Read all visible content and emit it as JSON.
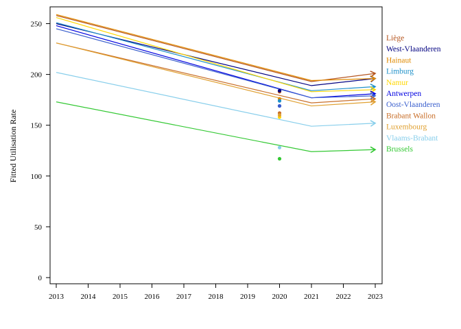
{
  "chart_data": {
    "type": "line",
    "title": "",
    "xlabel": "",
    "ylabel": "Fitted Utilisation Rate",
    "xlim": [
      2013,
      2023
    ],
    "ylim": [
      0,
      260
    ],
    "x_ticks": [
      "2013",
      "2014",
      "2015",
      "2016",
      "2017",
      "2018",
      "2019",
      "2020",
      "2021",
      "2022",
      "2023"
    ],
    "y_ticks": [
      "0",
      "50",
      "100",
      "150",
      "200",
      "250"
    ],
    "x": [
      2013,
      2021,
      2023
    ],
    "grid": false,
    "legend_position": "right",
    "series": [
      {
        "name": "Liège",
        "color": "#b5541e",
        "values": [
          258,
          193,
          201
        ],
        "observed_2020": 183
      },
      {
        "name": "West-Vlaanderen",
        "color": "#000080",
        "values": [
          250,
          189,
          196
        ],
        "observed_2020": 184
      },
      {
        "name": "Hainaut",
        "color": "#e08a00",
        "values": [
          259,
          194,
          196
        ],
        "observed_2020": 176
      },
      {
        "name": "Limburg",
        "color": "#1e90c8",
        "values": [
          251,
          184,
          188
        ],
        "observed_2020": 174
      },
      {
        "name": "Namur",
        "color": "#ffd700",
        "values": [
          256,
          183,
          185
        ],
        "observed_2020": 158
      },
      {
        "name": "Antwerpen",
        "color": "#0000e0",
        "values": [
          248,
          177,
          181
        ],
        "observed_2020": 169
      },
      {
        "name": "Oost-Vlaanderen",
        "color": "#3a5fcd",
        "values": [
          245,
          177,
          179
        ],
        "observed_2020": 169
      },
      {
        "name": "Brabant Wallon",
        "color": "#c86e28",
        "values": [
          231,
          172,
          176
        ],
        "observed_2020": 162
      },
      {
        "name": "Luxembourg",
        "color": "#e0a030",
        "values": [
          231,
          169,
          173
        ],
        "observed_2020": 160
      },
      {
        "name": "Vlaams-Brabant",
        "color": "#87ceeb",
        "values": [
          202,
          149,
          152
        ],
        "observed_2020": 128
      },
      {
        "name": "Brussels",
        "color": "#32c832",
        "values": [
          173,
          124,
          126
        ],
        "observed_2020": 117
      }
    ]
  }
}
